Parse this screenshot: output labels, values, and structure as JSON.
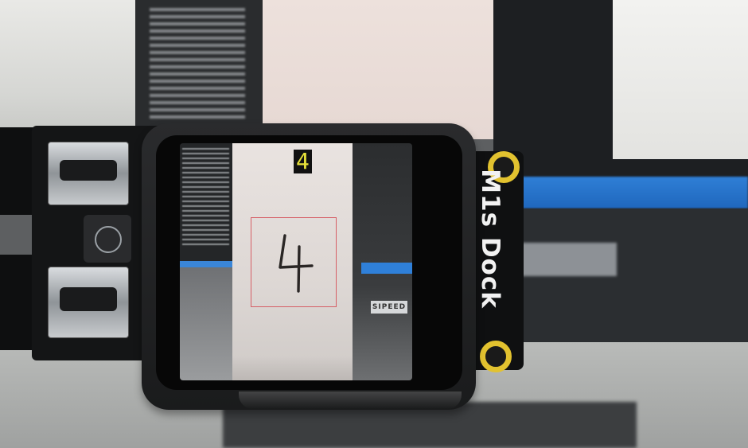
{
  "device": {
    "board_label": "M1s Dock",
    "prediction": "4",
    "background_speed_label": "SIPEED"
  },
  "colors": {
    "prediction_text": "#e8e23a",
    "detection_box": "#d65f66",
    "accent_blue": "#2f80d9",
    "mounting_ring": "#e2c22f"
  }
}
